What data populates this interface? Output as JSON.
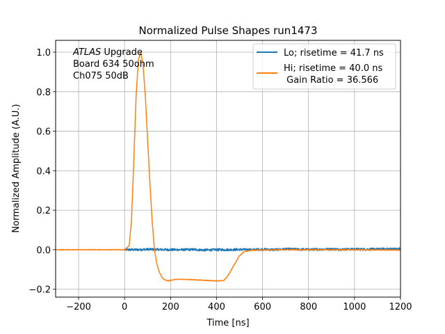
{
  "chart_data": {
    "type": "line",
    "title": "Normalized Pulse Shapes run1473",
    "xlabel": "Time [ns]",
    "ylabel": "Normalized Amplitude (A.U.)",
    "xlim": [
      -300,
      1200
    ],
    "ylim": [
      -0.24,
      1.06
    ],
    "xticks": [
      -200,
      0,
      200,
      400,
      600,
      800,
      1000,
      1200
    ],
    "xtick_labels": [
      "−200",
      "0",
      "200",
      "400",
      "600",
      "800",
      "1000",
      "1200"
    ],
    "yticks": [
      -0.2,
      0.0,
      0.2,
      0.4,
      0.6,
      0.8,
      1.0
    ],
    "ytick_labels": [
      "−0.2",
      "0.0",
      "0.2",
      "0.4",
      "0.6",
      "0.8",
      "1.0"
    ],
    "grid": true,
    "legend_position": "top-right",
    "annotation": {
      "line1_italic": "ATLAS",
      "line1_rest": " Upgrade",
      "line2": "Board 634 50ohm",
      "line3": "Ch075 50dB"
    },
    "series": [
      {
        "name": "Lo; risetime = 41.7 ns",
        "color": "#1f77b4",
        "x": [
          0,
          50,
          100,
          150,
          200,
          250,
          300,
          350,
          400,
          450,
          500,
          550,
          600,
          650,
          700,
          750,
          800,
          850,
          900,
          950,
          1000,
          1050,
          1100,
          1150,
          1200
        ],
        "y": [
          0.0,
          0.0,
          0.002,
          0.001,
          0.0,
          0.0,
          0.001,
          -0.002,
          0.0,
          0.0,
          0.001,
          0.0,
          0.002,
          0.0,
          0.003,
          0.002,
          0.001,
          0.002,
          0.003,
          0.002,
          0.003,
          0.002,
          0.003,
          0.004,
          0.004
        ],
        "noise": 0.006
      },
      {
        "name": "Hi; risetime = 40.0 ns\n Gain Ratio = 36.566",
        "color": "#ff7f0e",
        "x": [
          -300,
          0,
          20,
          30,
          40,
          50,
          60,
          70,
          80,
          90,
          100,
          110,
          120,
          130,
          140,
          150,
          160,
          170,
          180,
          190,
          200,
          220,
          250,
          300,
          350,
          400,
          430,
          445,
          460,
          480,
          500,
          520,
          550,
          600,
          700,
          800,
          900,
          1000,
          1100,
          1200
        ],
        "y": [
          0.0,
          0.0,
          0.02,
          0.15,
          0.45,
          0.78,
          0.96,
          1.0,
          0.94,
          0.78,
          0.56,
          0.34,
          0.14,
          0.0,
          -0.07,
          -0.11,
          -0.135,
          -0.15,
          -0.155,
          -0.158,
          -0.155,
          -0.15,
          -0.15,
          -0.152,
          -0.155,
          -0.158,
          -0.157,
          -0.14,
          -0.11,
          -0.07,
          -0.03,
          -0.01,
          -0.003,
          -0.001,
          0.0,
          0.0,
          0.0,
          0.0,
          -0.001,
          -0.002
        ],
        "noise": 0.0015
      }
    ]
  }
}
